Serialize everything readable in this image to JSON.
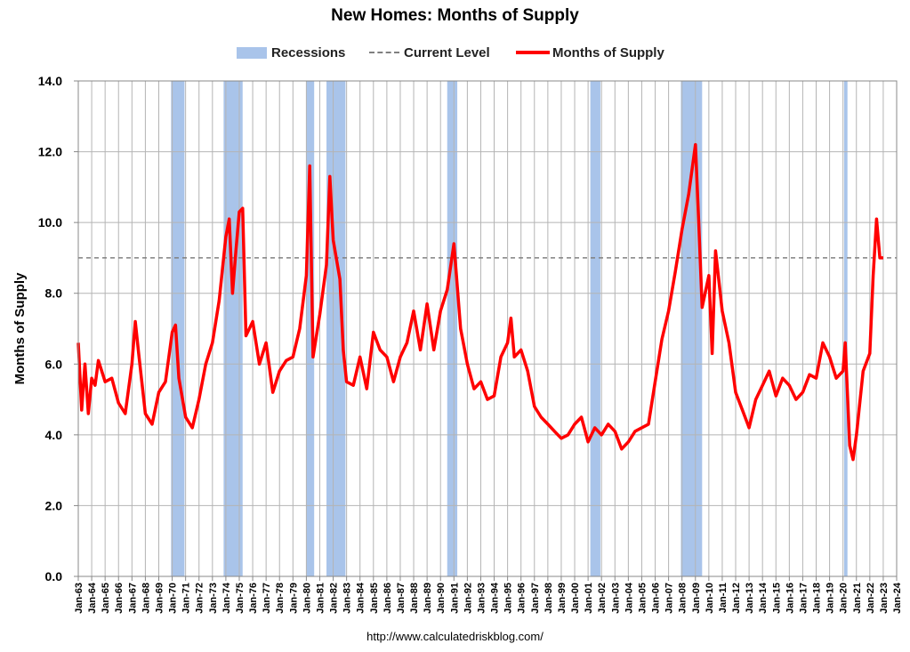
{
  "chart_data": {
    "type": "line",
    "title": "New Homes: Months of Supply",
    "ylabel": "Months of Supply",
    "xlabel": "",
    "ylim": [
      0,
      14
    ],
    "xlim": [
      "Jan-63",
      "Jan-24"
    ],
    "yticks": [
      "0.0",
      "2.0",
      "4.0",
      "6.0",
      "8.0",
      "10.0",
      "12.0",
      "14.0"
    ],
    "xticks": [
      "Jan-63",
      "Jan-64",
      "Jan-65",
      "Jan-66",
      "Jan-67",
      "Jan-68",
      "Jan-69",
      "Jan-70",
      "Jan-71",
      "Jan-72",
      "Jan-73",
      "Jan-74",
      "Jan-75",
      "Jan-76",
      "Jan-77",
      "Jan-78",
      "Jan-79",
      "Jan-80",
      "Jan-81",
      "Jan-82",
      "Jan-83",
      "Jan-84",
      "Jan-85",
      "Jan-86",
      "Jan-87",
      "Jan-88",
      "Jan-89",
      "Jan-90",
      "Jan-91",
      "Jan-92",
      "Jan-93",
      "Jan-94",
      "Jan-95",
      "Jan-96",
      "Jan-97",
      "Jan-98",
      "Jan-99",
      "Jan-00",
      "Jan-01",
      "Jan-02",
      "Jan-03",
      "Jan-04",
      "Jan-05",
      "Jan-06",
      "Jan-07",
      "Jan-08",
      "Jan-09",
      "Jan-10",
      "Jan-11",
      "Jan-12",
      "Jan-13",
      "Jan-14",
      "Jan-15",
      "Jan-16",
      "Jan-17",
      "Jan-18",
      "Jan-19",
      "Jan-20",
      "Jan-21",
      "Jan-22",
      "Jan-23",
      "Jan-24"
    ],
    "grid": true,
    "legend_position": "top",
    "legend": [
      {
        "label": "Recessions",
        "style": "band",
        "color": "#a9c4ea"
      },
      {
        "label": "Current Level",
        "style": "dashed",
        "color": "#808080"
      },
      {
        "label": "Months of Supply",
        "style": "line",
        "color": "#ff0000"
      }
    ],
    "current_level": 9.0,
    "recessions": [
      {
        "start": "Dec-69",
        "end": "Nov-70"
      },
      {
        "start": "Nov-73",
        "end": "Mar-75"
      },
      {
        "start": "Jan-80",
        "end": "Jul-80"
      },
      {
        "start": "Jul-81",
        "end": "Nov-82"
      },
      {
        "start": "Jul-90",
        "end": "Mar-91"
      },
      {
        "start": "Mar-01",
        "end": "Nov-01"
      },
      {
        "start": "Dec-07",
        "end": "Jun-09"
      },
      {
        "start": "Feb-20",
        "end": "Apr-20"
      }
    ],
    "series": [
      {
        "name": "Months of Supply",
        "color": "#ff0000",
        "points": [
          [
            "Jan-63",
            6.6
          ],
          [
            "Apr-63",
            4.7
          ],
          [
            "Jul-63",
            6.0
          ],
          [
            "Oct-63",
            4.6
          ],
          [
            "Jan-64",
            5.6
          ],
          [
            "Apr-64",
            5.4
          ],
          [
            "Jul-64",
            6.1
          ],
          [
            "Jan-65",
            5.5
          ],
          [
            "Jul-65",
            5.6
          ],
          [
            "Jan-66",
            4.9
          ],
          [
            "Jul-66",
            4.6
          ],
          [
            "Jan-67",
            6.0
          ],
          [
            "Apr-67",
            7.2
          ],
          [
            "Jul-67",
            6.3
          ],
          [
            "Jan-68",
            4.6
          ],
          [
            "Jul-68",
            4.3
          ],
          [
            "Jan-69",
            5.2
          ],
          [
            "Jul-69",
            5.5
          ],
          [
            "Jan-70",
            6.9
          ],
          [
            "Apr-70",
            7.1
          ],
          [
            "Jul-70",
            5.6
          ],
          [
            "Jan-71",
            4.5
          ],
          [
            "Jul-71",
            4.2
          ],
          [
            "Jan-72",
            5.0
          ],
          [
            "Jul-72",
            6.0
          ],
          [
            "Jan-73",
            6.6
          ],
          [
            "Jul-73",
            7.8
          ],
          [
            "Jan-74",
            9.6
          ],
          [
            "Apr-74",
            10.1
          ],
          [
            "Jul-74",
            8.0
          ],
          [
            "Oct-74",
            9.2
          ],
          [
            "Jan-75",
            10.3
          ],
          [
            "Apr-75",
            10.4
          ],
          [
            "Jul-75",
            6.8
          ],
          [
            "Jan-76",
            7.2
          ],
          [
            "Jul-76",
            6.0
          ],
          [
            "Jan-77",
            6.6
          ],
          [
            "Jul-77",
            5.2
          ],
          [
            "Jan-78",
            5.8
          ],
          [
            "Jul-78",
            6.1
          ],
          [
            "Jan-79",
            6.2
          ],
          [
            "Jul-79",
            7.0
          ],
          [
            "Jan-80",
            8.5
          ],
          [
            "Apr-80",
            11.6
          ],
          [
            "Jul-80",
            6.2
          ],
          [
            "Jan-81",
            7.4
          ],
          [
            "Jul-81",
            8.8
          ],
          [
            "Oct-81",
            11.3
          ],
          [
            "Jan-82",
            9.5
          ],
          [
            "Jul-82",
            8.4
          ],
          [
            "Oct-82",
            6.4
          ],
          [
            "Jan-83",
            5.5
          ],
          [
            "Jul-83",
            5.4
          ],
          [
            "Jan-84",
            6.2
          ],
          [
            "Jul-84",
            5.3
          ],
          [
            "Jan-85",
            6.9
          ],
          [
            "Jul-85",
            6.4
          ],
          [
            "Jan-86",
            6.2
          ],
          [
            "Jul-86",
            5.5
          ],
          [
            "Jan-87",
            6.2
          ],
          [
            "Jul-87",
            6.6
          ],
          [
            "Jan-88",
            7.5
          ],
          [
            "Jul-88",
            6.4
          ],
          [
            "Jan-89",
            7.7
          ],
          [
            "Jul-89",
            6.4
          ],
          [
            "Jan-90",
            7.5
          ],
          [
            "Jul-90",
            8.1
          ],
          [
            "Jan-91",
            9.4
          ],
          [
            "Jul-91",
            7.0
          ],
          [
            "Jan-92",
            6.0
          ],
          [
            "Jul-92",
            5.3
          ],
          [
            "Jan-93",
            5.5
          ],
          [
            "Jul-93",
            5.0
          ],
          [
            "Jan-94",
            5.1
          ],
          [
            "Jul-94",
            6.2
          ],
          [
            "Jan-95",
            6.6
          ],
          [
            "Apr-95",
            7.3
          ],
          [
            "Jul-95",
            6.2
          ],
          [
            "Jan-96",
            6.4
          ],
          [
            "Jul-96",
            5.8
          ],
          [
            "Jan-97",
            4.8
          ],
          [
            "Jul-97",
            4.5
          ],
          [
            "Jan-98",
            4.3
          ],
          [
            "Jul-98",
            4.1
          ],
          [
            "Jan-99",
            3.9
          ],
          [
            "Jul-99",
            4.0
          ],
          [
            "Jan-00",
            4.3
          ],
          [
            "Jul-00",
            4.5
          ],
          [
            "Jan-01",
            3.8
          ],
          [
            "Jul-01",
            4.2
          ],
          [
            "Jan-02",
            4.0
          ],
          [
            "Jul-02",
            4.3
          ],
          [
            "Jan-03",
            4.1
          ],
          [
            "Jul-03",
            3.6
          ],
          [
            "Jan-04",
            3.8
          ],
          [
            "Jul-04",
            4.1
          ],
          [
            "Jan-05",
            4.2
          ],
          [
            "Jul-05",
            4.3
          ],
          [
            "Jan-06",
            5.5
          ],
          [
            "Jul-06",
            6.7
          ],
          [
            "Jan-07",
            7.5
          ],
          [
            "Jul-07",
            8.6
          ],
          [
            "Jan-08",
            9.8
          ],
          [
            "Jul-08",
            10.8
          ],
          [
            "Jan-09",
            12.2
          ],
          [
            "Apr-09",
            10.0
          ],
          [
            "Jul-09",
            7.6
          ],
          [
            "Jan-10",
            8.5
          ],
          [
            "Apr-10",
            6.3
          ],
          [
            "Jul-10",
            9.2
          ],
          [
            "Jan-11",
            7.5
          ],
          [
            "Jul-11",
            6.6
          ],
          [
            "Jan-12",
            5.2
          ],
          [
            "Jul-12",
            4.7
          ],
          [
            "Jan-13",
            4.2
          ],
          [
            "Jul-13",
            5.0
          ],
          [
            "Jan-14",
            5.4
          ],
          [
            "Jul-14",
            5.8
          ],
          [
            "Jan-15",
            5.1
          ],
          [
            "Jul-15",
            5.6
          ],
          [
            "Jan-16",
            5.4
          ],
          [
            "Jul-16",
            5.0
          ],
          [
            "Jan-17",
            5.2
          ],
          [
            "Jul-17",
            5.7
          ],
          [
            "Jan-18",
            5.6
          ],
          [
            "Jul-18",
            6.6
          ],
          [
            "Jan-19",
            6.2
          ],
          [
            "Jul-19",
            5.6
          ],
          [
            "Jan-20",
            5.8
          ],
          [
            "Mar-20",
            6.6
          ],
          [
            "Jul-20",
            3.7
          ],
          [
            "Oct-20",
            3.3
          ],
          [
            "Jan-21",
            4.0
          ],
          [
            "Jul-21",
            5.8
          ],
          [
            "Jan-22",
            6.3
          ],
          [
            "Apr-22",
            8.5
          ],
          [
            "Jul-22",
            10.1
          ],
          [
            "Oct-22",
            9.0
          ],
          [
            "Jan-23",
            9.0
          ]
        ]
      }
    ]
  },
  "source_text": "http://www.calculatedriskblog.com/"
}
